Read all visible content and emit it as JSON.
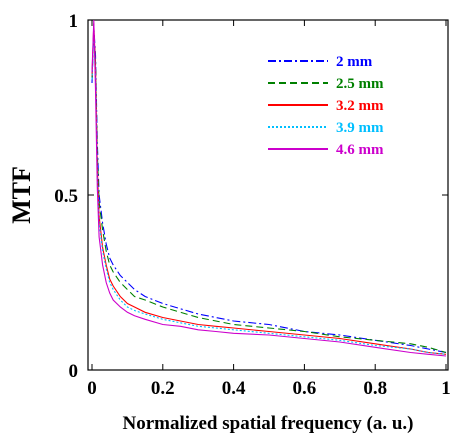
{
  "chart_data": {
    "type": "line",
    "title": "",
    "xlabel": "Normalized spatial frequency (a. u.)",
    "ylabel": "MTF",
    "xlim": [
      0,
      1
    ],
    "ylim": [
      0,
      1
    ],
    "x_ticks": [
      {
        "value": 0,
        "label": "0"
      },
      {
        "value": 0.2,
        "label": "0.2"
      },
      {
        "value": 0.4,
        "label": "0.4"
      },
      {
        "value": 0.6,
        "label": "0.6"
      },
      {
        "value": 0.8,
        "label": "0.8"
      },
      {
        "value": 1,
        "label": "1"
      }
    ],
    "y_ticks": [
      {
        "value": 0,
        "label": "0"
      },
      {
        "value": 0.5,
        "label": "0.5"
      },
      {
        "value": 1,
        "label": "1"
      }
    ],
    "grid": false,
    "legend_position": "top-right",
    "series": [
      {
        "name": "2 mm",
        "color": "#0000ff",
        "dash": "dashdot",
        "x": [
          0,
          0.005,
          0.01,
          0.015,
          0.02,
          0.03,
          0.04,
          0.05,
          0.06,
          0.08,
          0.1,
          0.12,
          0.15,
          0.2,
          0.25,
          0.3,
          0.35,
          0.4,
          0.5,
          0.6,
          0.7,
          0.8,
          0.9,
          0.95,
          1.0
        ],
        "y": [
          0.82,
          0.98,
          0.9,
          0.65,
          0.5,
          0.42,
          0.36,
          0.32,
          0.3,
          0.27,
          0.25,
          0.23,
          0.21,
          0.19,
          0.175,
          0.16,
          0.15,
          0.14,
          0.13,
          0.11,
          0.1,
          0.085,
          0.07,
          0.06,
          0.05
        ]
      },
      {
        "name": "2.5 mm",
        "color": "#008000",
        "dash": "dashed",
        "x": [
          0,
          0.005,
          0.01,
          0.015,
          0.02,
          0.03,
          0.04,
          0.05,
          0.06,
          0.08,
          0.1,
          0.12,
          0.15,
          0.2,
          0.25,
          0.3,
          0.35,
          0.4,
          0.5,
          0.6,
          0.7,
          0.8,
          0.9,
          0.95,
          1.0
        ],
        "y": [
          0.83,
          0.97,
          0.88,
          0.62,
          0.48,
          0.4,
          0.34,
          0.3,
          0.28,
          0.25,
          0.23,
          0.21,
          0.2,
          0.18,
          0.165,
          0.15,
          0.14,
          0.13,
          0.12,
          0.11,
          0.095,
          0.085,
          0.075,
          0.065,
          0.05
        ]
      },
      {
        "name": "3.2 mm",
        "color": "#ff0000",
        "dash": "solid",
        "x": [
          0,
          0.005,
          0.01,
          0.015,
          0.02,
          0.03,
          0.04,
          0.05,
          0.06,
          0.08,
          0.1,
          0.12,
          0.15,
          0.2,
          0.25,
          0.3,
          0.35,
          0.4,
          0.5,
          0.6,
          0.7,
          0.8,
          0.9,
          0.95,
          1.0
        ],
        "y": [
          0.84,
          0.99,
          0.86,
          0.58,
          0.44,
          0.35,
          0.3,
          0.26,
          0.24,
          0.21,
          0.19,
          0.18,
          0.165,
          0.15,
          0.14,
          0.13,
          0.125,
          0.12,
          0.11,
          0.1,
          0.09,
          0.075,
          0.06,
          0.05,
          0.045
        ]
      },
      {
        "name": "3.9 mm",
        "color": "#00bfff",
        "dash": "dotted",
        "x": [
          0,
          0.005,
          0.01,
          0.015,
          0.02,
          0.03,
          0.04,
          0.05,
          0.06,
          0.08,
          0.1,
          0.12,
          0.15,
          0.2,
          0.25,
          0.3,
          0.35,
          0.4,
          0.5,
          0.6,
          0.7,
          0.8,
          0.9,
          0.95,
          1.0
        ],
        "y": [
          0.83,
          0.97,
          0.84,
          0.56,
          0.42,
          0.34,
          0.29,
          0.25,
          0.23,
          0.2,
          0.18,
          0.17,
          0.16,
          0.145,
          0.135,
          0.125,
          0.12,
          0.115,
          0.105,
          0.095,
          0.085,
          0.07,
          0.06,
          0.05,
          0.045
        ]
      },
      {
        "name": "4.6 mm",
        "color": "#cc00cc",
        "dash": "solid",
        "x": [
          0,
          0.005,
          0.01,
          0.015,
          0.02,
          0.03,
          0.04,
          0.05,
          0.06,
          0.08,
          0.1,
          0.12,
          0.15,
          0.2,
          0.25,
          0.3,
          0.35,
          0.4,
          0.5,
          0.6,
          0.7,
          0.8,
          0.9,
          0.95,
          1.0
        ],
        "y": [
          0.85,
          1.0,
          0.8,
          0.52,
          0.38,
          0.3,
          0.25,
          0.22,
          0.2,
          0.18,
          0.165,
          0.155,
          0.145,
          0.13,
          0.125,
          0.115,
          0.11,
          0.105,
          0.1,
          0.09,
          0.08,
          0.065,
          0.05,
          0.045,
          0.04
        ]
      }
    ]
  }
}
